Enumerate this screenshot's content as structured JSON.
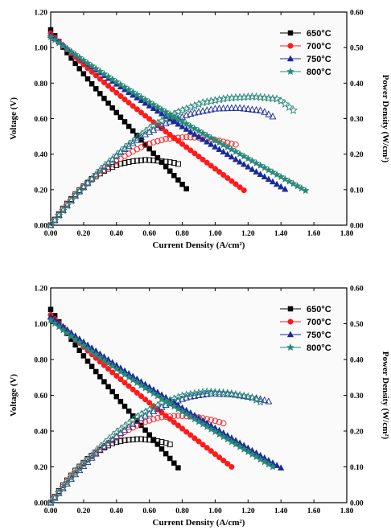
{
  "chart_data": [
    {
      "type": "line",
      "xlabel": "Current Density (A/cm²)",
      "ylabel": "Voltage (V)",
      "y2label": "Power Density (W/cm²)",
      "xlim": [
        0,
        1.8
      ],
      "ylim": [
        0,
        1.2
      ],
      "y2lim": [
        0,
        0.6
      ],
      "xticks": [
        "0.00",
        "0.20",
        "0.40",
        "0.60",
        "0.80",
        "1.00",
        "1.20",
        "1.40",
        "1.60",
        "1.80"
      ],
      "yticks": [
        "0.00",
        "0.20",
        "0.40",
        "0.60",
        "0.80",
        "1.00",
        "1.20"
      ],
      "y2ticks": [
        "0.00",
        "0.10",
        "0.20",
        "0.30",
        "0.40",
        "0.50",
        "0.60"
      ],
      "legend_position": "top-right",
      "series": [
        {
          "name": "650°C",
          "color": "#000000",
          "marker": "square",
          "ocv": 1.1,
          "imax": 0.83,
          "vend": 0.2,
          "pcurve": [
            0,
            0.052,
            0.095,
            0.13,
            0.155,
            0.172,
            0.18,
            0.184,
            0.181,
            0.176,
            0.165
          ]
        },
        {
          "name": "700°C",
          "color": "#ff1a1a",
          "marker": "circle",
          "ocv": 1.08,
          "imax": 1.17,
          "vend": 0.2,
          "pcurve": [
            0,
            0.068,
            0.122,
            0.165,
            0.2,
            0.228,
            0.243,
            0.248,
            0.246,
            0.235,
            0.222
          ]
        },
        {
          "name": "750°C",
          "color": "#1a2a9a",
          "marker": "triangle",
          "ocv": 1.07,
          "imax": 1.43,
          "vend": 0.2,
          "pcurve": [
            0,
            0.08,
            0.148,
            0.207,
            0.255,
            0.29,
            0.315,
            0.328,
            0.33,
            0.322,
            0.285
          ]
        },
        {
          "name": "800°C",
          "color": "#2a8a7a",
          "marker": "star",
          "ocv": 1.06,
          "imax": 1.54,
          "vend": 0.2,
          "pcurve": [
            0,
            0.085,
            0.158,
            0.222,
            0.278,
            0.318,
            0.345,
            0.358,
            0.362,
            0.355,
            0.3
          ]
        }
      ]
    },
    {
      "type": "line",
      "xlabel": "Current Density (A/cm²)",
      "ylabel": "Voltage (V)",
      "y2label": "Power Density (W/cm²)",
      "xlim": [
        0,
        1.8
      ],
      "ylim": [
        0,
        1.2
      ],
      "y2lim": [
        0,
        0.6
      ],
      "xticks": [
        "0.00",
        "0.20",
        "0.40",
        "0.60",
        "0.80",
        "1.00",
        "1.20",
        "1.40",
        "1.60",
        "1.80"
      ],
      "yticks": [
        "0.00",
        "0.20",
        "0.40",
        "0.60",
        "0.80",
        "1.00",
        "1.20"
      ],
      "y2ticks": [
        "0.00",
        "0.10",
        "0.20",
        "0.30",
        "0.40",
        "0.50",
        "0.60"
      ],
      "legend_position": "top-right",
      "series": [
        {
          "name": "650°C",
          "color": "#000000",
          "marker": "square",
          "ocv": 1.08,
          "imax": 0.77,
          "vend": 0.2,
          "pcurve": [
            0,
            0.05,
            0.092,
            0.125,
            0.15,
            0.168,
            0.175,
            0.178,
            0.175,
            0.168,
            0.155
          ]
        },
        {
          "name": "700°C",
          "color": "#ff1a1a",
          "marker": "circle",
          "ocv": 1.05,
          "imax": 1.1,
          "vend": 0.2,
          "pcurve": [
            0,
            0.065,
            0.118,
            0.16,
            0.195,
            0.222,
            0.238,
            0.243,
            0.24,
            0.23,
            0.215
          ]
        },
        {
          "name": "750°C",
          "color": "#1a2a9a",
          "marker": "triangle",
          "ocv": 1.04,
          "imax": 1.39,
          "vend": 0.2,
          "pcurve": [
            0,
            0.074,
            0.138,
            0.192,
            0.238,
            0.272,
            0.295,
            0.305,
            0.302,
            0.292,
            0.275
          ]
        },
        {
          "name": "800°C",
          "color": "#2a8a7a",
          "marker": "star",
          "ocv": 1.02,
          "imax": 1.35,
          "vend": 0.2,
          "pcurve": [
            0,
            0.076,
            0.142,
            0.198,
            0.244,
            0.278,
            0.3,
            0.31,
            0.306,
            0.295,
            0.265
          ]
        }
      ]
    }
  ]
}
